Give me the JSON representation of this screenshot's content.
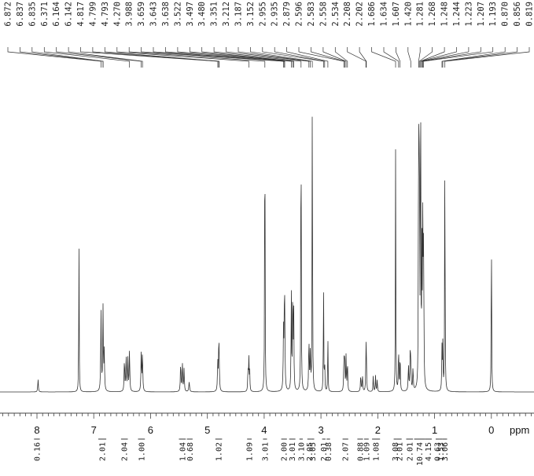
{
  "chart_data": {
    "type": "line",
    "xlabel": "ppm",
    "xlim": [
      8.65,
      -0.75
    ],
    "x_reversed": true,
    "x_ticks": [
      8,
      7,
      6,
      5,
      4,
      3,
      2,
      1,
      0
    ],
    "peak_labels": [
      "6.872",
      "6.837",
      "6.835",
      "6.371",
      "6.164",
      "6.142",
      "4.817",
      "4.799",
      "4.793",
      "4.270",
      "3.988",
      "3.659",
      "3.643",
      "3.638",
      "3.522",
      "3.497",
      "3.480",
      "3.351",
      "3.212",
      "3.187",
      "3.152",
      "2.955",
      "2.935",
      "2.879",
      "2.596",
      "2.583",
      "2.558",
      "2.534",
      "2.208",
      "2.202",
      "1.686",
      "1.634",
      "1.607",
      "1.420",
      "1.281",
      "1.268",
      "1.248",
      "1.244",
      "1.223",
      "1.207",
      "1.193",
      "0.870",
      "0.856",
      "0.819"
    ],
    "integrals": [
      {
        "label": "0.16",
        "from": 8.05,
        "to": 7.95
      },
      {
        "label": "2.01",
        "from": 6.92,
        "to": 6.78
      },
      {
        "label": "2.04",
        "from": 6.52,
        "to": 6.4
      },
      {
        "label": "1.00",
        "from": 6.22,
        "to": 6.1
      },
      {
        "label": "1.04",
        "from": 5.5,
        "to": 5.38
      },
      {
        "label": "0.68",
        "from": 5.36,
        "to": 5.26
      },
      {
        "label": "1.02",
        "from": 4.86,
        "to": 4.74
      },
      {
        "label": "1.09",
        "from": 4.3,
        "to": 4.22
      },
      {
        "label": "3.01",
        "from": 4.02,
        "to": 3.95
      },
      {
        "label": "2.00",
        "from": 3.7,
        "to": 3.6
      },
      {
        "label": "3.01",
        "from": 3.56,
        "to": 3.45
      },
      {
        "label": "3.10",
        "from": 3.38,
        "to": 3.32
      },
      {
        "label": "2.05",
        "from": 3.24,
        "to": 3.17
      },
      {
        "label": "3.05",
        "from": 3.17,
        "to": 3.12
      },
      {
        "label": "2.01",
        "from": 2.98,
        "to": 2.92
      },
      {
        "label": "0.38",
        "from": 2.9,
        "to": 2.84
      },
      {
        "label": "2.07",
        "from": 2.62,
        "to": 2.52
      },
      {
        "label": "0.88",
        "from": 2.36,
        "to": 2.26
      },
      {
        "label": "1.09",
        "from": 2.24,
        "to": 2.16
      },
      {
        "label": "1.08",
        "from": 2.1,
        "to": 1.96
      },
      {
        "label": "3.08",
        "from": 1.72,
        "to": 1.66
      },
      {
        "label": "2.01",
        "from": 1.66,
        "to": 1.58
      },
      {
        "label": "2.01",
        "from": 1.5,
        "to": 1.38
      },
      {
        "label": "10.74",
        "from": 1.36,
        "to": 1.17
      },
      {
        "label": "4.15",
        "from": 1.17,
        "to": 1.05
      },
      {
        "label": "0.63",
        "from": 0.98,
        "to": 0.92
      },
      {
        "label": "1.53",
        "from": 0.92,
        "to": 0.86
      },
      {
        "label": "3.06",
        "from": 0.86,
        "to": 0.78
      }
    ],
    "peaks": [
      {
        "x": 7.98,
        "h": 0.04,
        "w": 0.006
      },
      {
        "x": 7.26,
        "h": 0.49,
        "w": 0.004
      },
      {
        "x": 6.872,
        "h": 0.25,
        "w": 0.006
      },
      {
        "x": 6.837,
        "h": 0.26,
        "w": 0.006
      },
      {
        "x": 6.815,
        "h": 0.12,
        "w": 0.006
      },
      {
        "x": 6.46,
        "h": 0.1,
        "w": 0.006
      },
      {
        "x": 6.43,
        "h": 0.11,
        "w": 0.006
      },
      {
        "x": 6.4,
        "h": 0.1,
        "w": 0.006
      },
      {
        "x": 6.371,
        "h": 0.13,
        "w": 0.006
      },
      {
        "x": 6.164,
        "h": 0.12,
        "w": 0.006
      },
      {
        "x": 6.142,
        "h": 0.12,
        "w": 0.006
      },
      {
        "x": 5.47,
        "h": 0.09,
        "w": 0.006
      },
      {
        "x": 5.44,
        "h": 0.09,
        "w": 0.006
      },
      {
        "x": 5.41,
        "h": 0.07,
        "w": 0.006
      },
      {
        "x": 5.32,
        "h": 0.03,
        "w": 0.008
      },
      {
        "x": 4.817,
        "h": 0.09,
        "w": 0.006
      },
      {
        "x": 4.799,
        "h": 0.11,
        "w": 0.006
      },
      {
        "x": 4.793,
        "h": 0.08,
        "w": 0.006
      },
      {
        "x": 4.285,
        "h": 0.07,
        "w": 0.005
      },
      {
        "x": 4.27,
        "h": 0.11,
        "w": 0.005
      },
      {
        "x": 4.255,
        "h": 0.06,
        "w": 0.005
      },
      {
        "x": 3.988,
        "h": 1.05,
        "w": 0.004
      },
      {
        "x": 3.659,
        "h": 0.18,
        "w": 0.006
      },
      {
        "x": 3.643,
        "h": 0.21,
        "w": 0.006
      },
      {
        "x": 3.638,
        "h": 0.15,
        "w": 0.006
      },
      {
        "x": 3.522,
        "h": 0.31,
        "w": 0.005
      },
      {
        "x": 3.497,
        "h": 0.34,
        "w": 0.005
      },
      {
        "x": 3.48,
        "h": 0.24,
        "w": 0.005
      },
      {
        "x": 3.351,
        "h": 1.05,
        "w": 0.004
      },
      {
        "x": 3.212,
        "h": 0.16,
        "w": 0.006
      },
      {
        "x": 3.187,
        "h": 0.12,
        "w": 0.006
      },
      {
        "x": 3.152,
        "h": 1.05,
        "w": 0.004
      },
      {
        "x": 2.955,
        "h": 0.36,
        "w": 0.004
      },
      {
        "x": 2.935,
        "h": 0.1,
        "w": 0.004
      },
      {
        "x": 2.879,
        "h": 0.19,
        "w": 0.004
      },
      {
        "x": 2.596,
        "h": 0.11,
        "w": 0.005
      },
      {
        "x": 2.583,
        "h": 0.12,
        "w": 0.005
      },
      {
        "x": 2.558,
        "h": 0.11,
        "w": 0.005
      },
      {
        "x": 2.534,
        "h": 0.1,
        "w": 0.005
      },
      {
        "x": 2.3,
        "h": 0.05,
        "w": 0.006
      },
      {
        "x": 2.27,
        "h": 0.05,
        "w": 0.006
      },
      {
        "x": 2.208,
        "h": 0.1,
        "w": 0.005
      },
      {
        "x": 2.202,
        "h": 0.11,
        "w": 0.005
      },
      {
        "x": 2.08,
        "h": 0.05,
        "w": 0.005
      },
      {
        "x": 2.04,
        "h": 0.05,
        "w": 0.005
      },
      {
        "x": 2.01,
        "h": 0.04,
        "w": 0.005
      },
      {
        "x": 1.686,
        "h": 0.76,
        "w": 0.004
      },
      {
        "x": 1.634,
        "h": 0.14,
        "w": 0.005
      },
      {
        "x": 1.607,
        "h": 0.12,
        "w": 0.005
      },
      {
        "x": 1.46,
        "h": 0.08,
        "w": 0.006
      },
      {
        "x": 1.43,
        "h": 0.1,
        "w": 0.006
      },
      {
        "x": 1.42,
        "h": 0.09,
        "w": 0.006
      },
      {
        "x": 1.38,
        "h": 0.07,
        "w": 0.006
      },
      {
        "x": 1.281,
        "h": 1.02,
        "w": 0.004
      },
      {
        "x": 1.268,
        "h": 0.96,
        "w": 0.004
      },
      {
        "x": 1.248,
        "h": 0.6,
        "w": 0.004
      },
      {
        "x": 1.244,
        "h": 0.5,
        "w": 0.004
      },
      {
        "x": 1.223,
        "h": 0.4,
        "w": 0.005
      },
      {
        "x": 1.207,
        "h": 0.55,
        "w": 0.005
      },
      {
        "x": 1.193,
        "h": 0.45,
        "w": 0.005
      },
      {
        "x": 0.87,
        "h": 0.13,
        "w": 0.005
      },
      {
        "x": 0.856,
        "h": 0.14,
        "w": 0.005
      },
      {
        "x": 0.819,
        "h": 0.86,
        "w": 0.004
      },
      {
        "x": 0.0,
        "h": 0.56,
        "w": 0.004
      }
    ]
  }
}
